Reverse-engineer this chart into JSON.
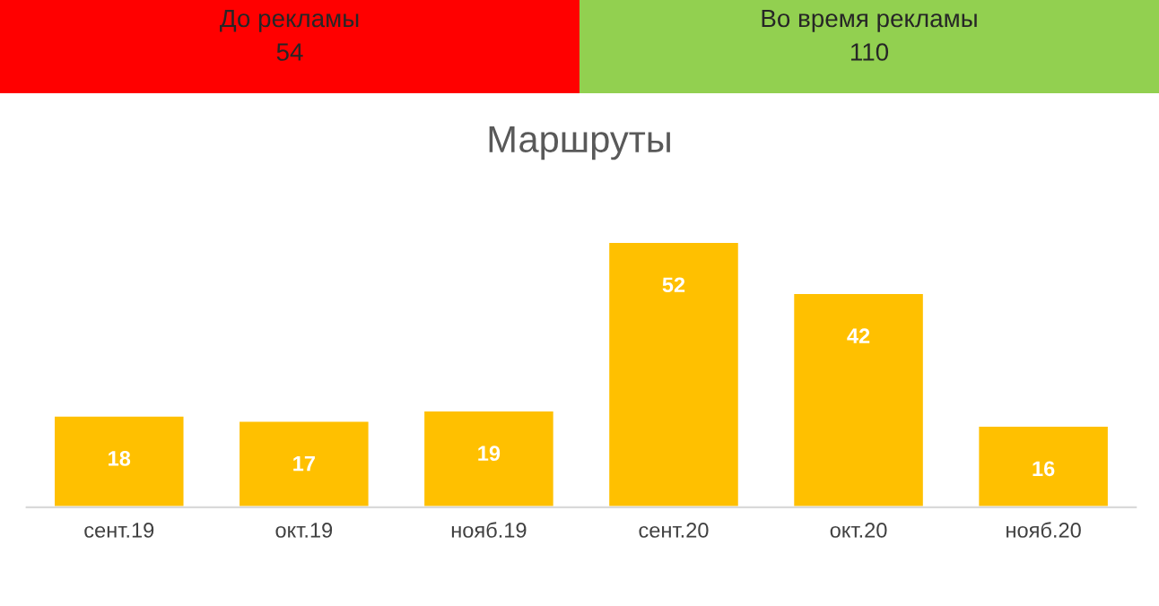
{
  "chart_data": [
    {
      "type": "other",
      "title": "До рекламы",
      "annotations": [
        "54"
      ],
      "color": "#ff0000"
    },
    {
      "type": "other",
      "title": "Во время рекламы",
      "annotations": [
        "110"
      ],
      "color": "#92d050"
    },
    {
      "type": "bar",
      "title": "Маршруты",
      "categories": [
        "сент.19",
        "окт.19",
        "нояб.19",
        "сент.20",
        "окт.20",
        "нояб.20"
      ],
      "values": [
        18,
        17,
        19,
        52,
        42,
        16
      ],
      "color": "#ffc000",
      "data_labels": true,
      "tick_labels": "x"
    }
  ]
}
